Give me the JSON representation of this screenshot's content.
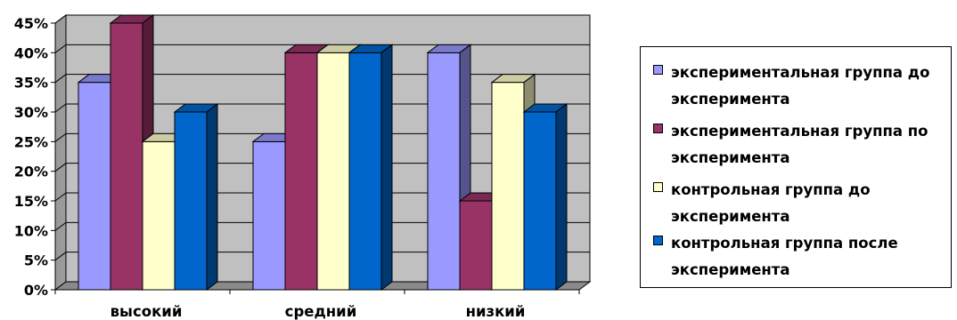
{
  "chart_data": {
    "type": "bar",
    "style": "3d-clustered-column",
    "categories": [
      "высокий",
      "средний",
      "низкий"
    ],
    "series": [
      {
        "name": "экспериментальная группа до эксперимента",
        "values": [
          35,
          25,
          40
        ],
        "color": "#9999ff"
      },
      {
        "name": "экспериментальная группа по эксперимента",
        "values": [
          45,
          40,
          15
        ],
        "color": "#993366"
      },
      {
        "name": "контрольная группа до эксперимента",
        "values": [
          25,
          40,
          35
        ],
        "color": "#ffffcc"
      },
      {
        "name": "контрольная группа после эксперимента",
        "values": [
          30,
          40,
          30
        ],
        "color": "#0066cc"
      }
    ],
    "y_ticks": [
      "0%",
      "5%",
      "10%",
      "15%",
      "20%",
      "25%",
      "30%",
      "35%",
      "40%",
      "45%"
    ],
    "ylim": [
      0,
      45
    ],
    "grid": true,
    "wall_color": "#c0c0c0",
    "legend": {
      "position": "right",
      "entries": [
        {
          "line1": "экспериментальная группа до",
          "line2": "эксперимента"
        },
        {
          "line1": "экспериментальная группа по",
          "line2": "эксперимента"
        },
        {
          "line1": "контрольная группа до",
          "line2": "эксперимента"
        },
        {
          "line1": "контрольная группа после",
          "line2": "эксперимента"
        }
      ]
    }
  }
}
